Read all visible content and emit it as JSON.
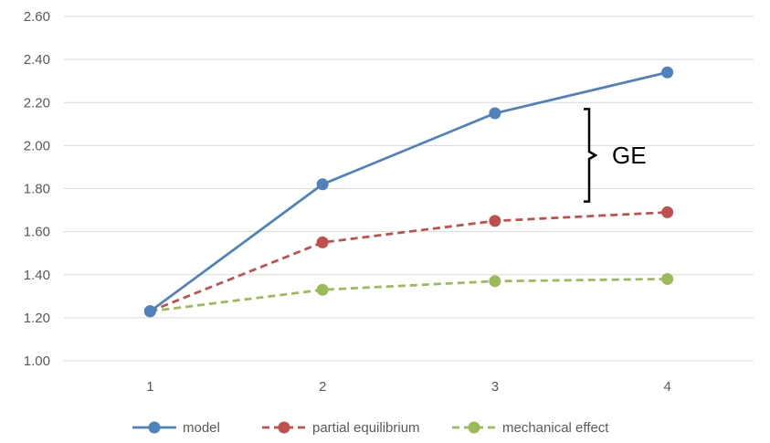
{
  "chart_data": {
    "type": "line",
    "title": "",
    "xlabel": "",
    "ylabel": "",
    "categories": [
      "1",
      "2",
      "3",
      "4"
    ],
    "ylim": [
      1.0,
      2.6
    ],
    "y_ticks": [
      "1.00",
      "1.20",
      "1.40",
      "1.60",
      "1.80",
      "2.00",
      "2.20",
      "2.40",
      "2.60"
    ],
    "grid": "horizontal",
    "legend_position": "bottom",
    "series": [
      {
        "name": "model",
        "values": [
          1.23,
          1.82,
          2.15,
          2.34
        ],
        "color": "#4F81BD",
        "dash": "solid"
      },
      {
        "name": "partial equilibrium",
        "values": [
          1.23,
          1.55,
          1.65,
          1.69
        ],
        "color": "#C0504D",
        "dash": "dashed"
      },
      {
        "name": "mechanical effect",
        "values": [
          1.23,
          1.33,
          1.37,
          1.38
        ],
        "color": "#9BBB59",
        "dash": "dashed"
      }
    ],
    "annotations": [
      {
        "text": "GE",
        "x_between": [
          "3",
          "4"
        ],
        "y_range": [
          1.74,
          2.17
        ],
        "type": "brace"
      }
    ]
  }
}
